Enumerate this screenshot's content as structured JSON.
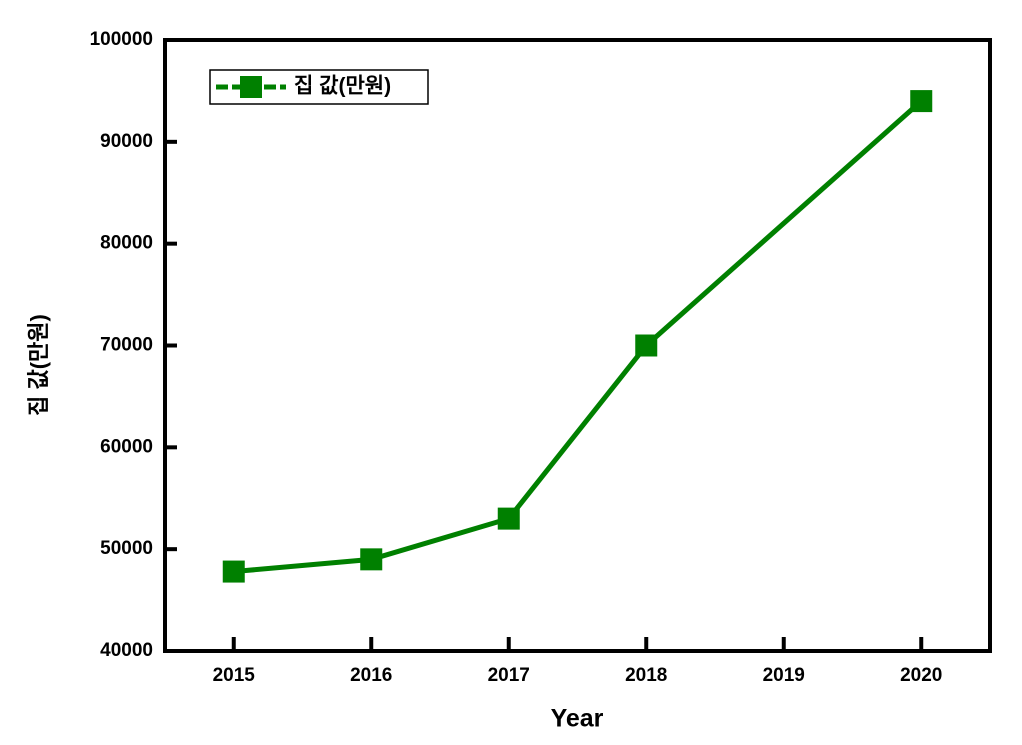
{
  "chart_data": {
    "type": "line",
    "x": [
      2015,
      2016,
      2017,
      2018,
      2020
    ],
    "series": [
      {
        "name": "집  값(만원)",
        "color": "#008000",
        "values": [
          47800,
          49000,
          53000,
          70000,
          94000
        ]
      }
    ],
    "xlabel": "Year",
    "ylabel": "집  값(만원)",
    "xlim": [
      2014.5,
      2020.5
    ],
    "xticks": [
      2015,
      2016,
      2017,
      2018,
      2019,
      2020
    ],
    "ylim": [
      40000,
      100000
    ],
    "yticks": [
      40000,
      50000,
      60000,
      70000,
      80000,
      90000,
      100000
    ],
    "legend": "upper left"
  }
}
